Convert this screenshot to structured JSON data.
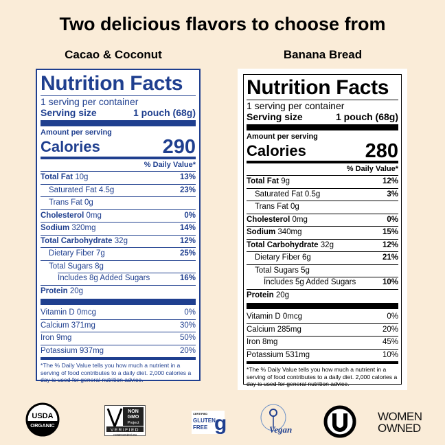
{
  "headline": "Two delicious flavors to choose from",
  "colors": {
    "background": "#faecd8",
    "cacao_label": "#1f3f8f",
    "banana_label": "#000000"
  },
  "labels": [
    {
      "flavor": "Cacao & Coconut",
      "title": "Nutrition Facts",
      "servings": "1 serving per container",
      "serving_size_label": "Serving size",
      "serving_size": "1 pouch (68g)",
      "amount_per_serving": "Amount per serving",
      "calories_label": "Calories",
      "calories": "290",
      "dv_header": "% Daily Value*",
      "rows": [
        {
          "name": "Total Fat",
          "amount": "10g",
          "pct": "13%",
          "indent": 0,
          "bold": true
        },
        {
          "name": "Saturated Fat",
          "amount": "4.5g",
          "pct": "23%",
          "indent": 1
        },
        {
          "name": "Trans Fat",
          "amount": "0g",
          "pct": "",
          "indent": 1
        },
        {
          "name": "Cholesterol",
          "amount": "0mg",
          "pct": "0%",
          "indent": 0,
          "bold": true
        },
        {
          "name": "Sodium",
          "amount": "320mg",
          "pct": "14%",
          "indent": 0,
          "bold": true
        },
        {
          "name": "Total Carbohydrate",
          "amount": "32g",
          "pct": "12%",
          "indent": 0,
          "bold": true
        },
        {
          "name": "Dietary Fiber",
          "amount": "7g",
          "pct": "25%",
          "indent": 1
        },
        {
          "name": "Total Sugars",
          "amount": "8g",
          "pct": "",
          "indent": 1
        },
        {
          "name": "Includes 8g Added Sugars",
          "amount": "",
          "pct": "16%",
          "indent": 2
        },
        {
          "name": "Protein",
          "amount": "20g",
          "pct": "",
          "indent": 0,
          "bold": true
        }
      ],
      "micros": [
        {
          "name": "Vitamin D",
          "amount": "0mcg",
          "pct": "0%"
        },
        {
          "name": "Calcium",
          "amount": "371mg",
          "pct": "30%"
        },
        {
          "name": "Iron",
          "amount": "9mg",
          "pct": "50%"
        },
        {
          "name": "Potassium",
          "amount": "937mg",
          "pct": "20%"
        }
      ],
      "footnote": "*The % Daily Value tells you how much a nutrient in a serving of food contributes to a daily diet. 2,000 calories a day is used for general nutrition advice."
    },
    {
      "flavor": "Banana Bread",
      "title": "Nutrition Facts",
      "servings": "1 serving per container",
      "serving_size_label": "Serving size",
      "serving_size": "1 pouch (68g)",
      "amount_per_serving": "Amount per serving",
      "calories_label": "Calories",
      "calories": "280",
      "dv_header": "% Daily Value*",
      "rows": [
        {
          "name": "Total Fat",
          "amount": "9g",
          "pct": "12%",
          "indent": 0,
          "bold": true
        },
        {
          "name": "Saturated Fat",
          "amount": "0.5g",
          "pct": "3%",
          "indent": 1
        },
        {
          "name": "Trans Fat",
          "amount": "0g",
          "pct": "",
          "indent": 1
        },
        {
          "name": "Cholesterol",
          "amount": "0mg",
          "pct": "0%",
          "indent": 0,
          "bold": true
        },
        {
          "name": "Sodium",
          "amount": "340mg",
          "pct": "15%",
          "indent": 0,
          "bold": true
        },
        {
          "name": "Total Carbohydrate",
          "amount": "32g",
          "pct": "12%",
          "indent": 0,
          "bold": true
        },
        {
          "name": "Dietary Fiber",
          "amount": "6g",
          "pct": "21%",
          "indent": 1
        },
        {
          "name": "Total Sugars",
          "amount": "5g",
          "pct": "",
          "indent": 1
        },
        {
          "name": "Includes 5g Added Sugars",
          "amount": "",
          "pct": "10%",
          "indent": 2
        },
        {
          "name": "Protein",
          "amount": "20g",
          "pct": "",
          "indent": 0,
          "bold": true
        }
      ],
      "micros": [
        {
          "name": "Vitamin D",
          "amount": "0mcg",
          "pct": "0%"
        },
        {
          "name": "Calcium",
          "amount": "285mg",
          "pct": "20%"
        },
        {
          "name": "Iron",
          "amount": "8mg",
          "pct": "45%"
        },
        {
          "name": "Potassium",
          "amount": "531mg",
          "pct": "10%"
        }
      ],
      "footnote": "*The % Daily Value tells you how much a nutrient in a serving of food contributes to a daily diet. 2,000 calories a day is used for general nutrition advice."
    }
  ],
  "badges": {
    "usda": {
      "icon": "usda-organic-seal",
      "line1": "USDA",
      "line2": "ORGANIC"
    },
    "nongmo": {
      "icon": "non-gmo-project-verified",
      "line1": "NON",
      "line2": "GMO",
      "line3": "Project",
      "line4": "VERIFIED",
      "line5": "nongmoproject.org"
    },
    "glutenfree": {
      "icon": "certified-gluten-free",
      "line1": "CERTIFIED",
      "line2": "GLUTEN",
      "line3": "FREE"
    },
    "vegan": {
      "icon": "vegan-sunflower",
      "text": "Vegan"
    },
    "kosher": {
      "icon": "ou-kosher",
      "text": "U"
    },
    "women": {
      "icon": "women-owned",
      "line1": "WOMEN",
      "line2": "OWNED"
    }
  }
}
